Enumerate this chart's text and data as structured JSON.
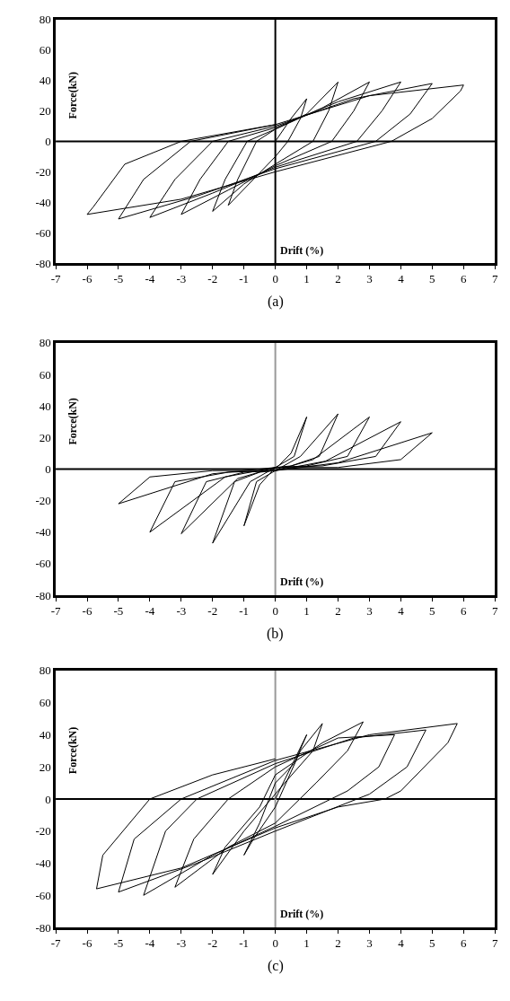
{
  "chart_data": [
    {
      "type": "line",
      "xlabel": "Drift (%)",
      "ylabel": "Force(kN)",
      "annotations": [
        "(a)"
      ],
      "color": "#000000",
      "marker": "none",
      "line_style": "solid",
      "grid": false,
      "x": [
        0,
        0.5,
        1,
        0.8,
        0.4,
        0,
        -0.7,
        -1.5,
        -1.2,
        -0.6,
        0,
        1,
        2,
        1.7,
        1.2,
        0,
        -1,
        -2,
        -1.6,
        -0.9,
        0,
        1.5,
        3,
        2.5,
        1.8,
        0,
        -1.5,
        -3,
        -2.4,
        -1.5,
        0,
        2,
        4,
        3.4,
        2.6,
        0,
        -2,
        -4,
        -3.2,
        -2,
        0,
        2.5,
        5,
        4.3,
        3.2,
        0,
        -2.5,
        -5,
        -4.2,
        -2.7,
        0,
        3,
        6,
        5.9,
        5,
        3.7,
        0,
        -3,
        -6,
        -5.8,
        -4.8,
        -3,
        0
      ],
      "values": [
        0,
        15,
        28,
        15,
        0,
        -10,
        -25,
        -42,
        -25,
        0,
        8,
        18,
        39,
        20,
        0,
        -15,
        -28,
        -46,
        -25,
        0,
        8,
        22,
        39,
        20,
        0,
        -16,
        -32,
        -48,
        -25,
        0,
        9,
        26,
        39,
        20,
        0,
        -17,
        -34,
        -50,
        -25,
        0,
        10,
        28,
        38,
        18,
        0,
        -18,
        -36,
        -51,
        -25,
        0,
        11,
        30,
        37,
        33,
        15,
        0,
        -20,
        -38,
        -48,
        -43,
        -15,
        0,
        11
      ],
      "xlim": [
        -7,
        7
      ],
      "xticks": [
        -7,
        -6,
        -5,
        -4,
        -3,
        -2,
        -1,
        0,
        1,
        2,
        3,
        4,
        5,
        6,
        7
      ],
      "ylim": [
        -80,
        80
      ],
      "yticks": [
        -80,
        -60,
        -40,
        -20,
        0,
        20,
        40,
        60,
        80
      ],
      "ref_lines": [
        {
          "axis": "y",
          "value": 0,
          "color": "#000000"
        },
        {
          "axis": "x",
          "value": 0,
          "color": "#000000"
        }
      ]
    },
    {
      "type": "line",
      "xlabel": "Drift (%)",
      "ylabel": "Force(kN)",
      "annotations": [
        "(b)"
      ],
      "color": "#000000",
      "marker": "none",
      "line_style": "solid",
      "grid": false,
      "x": [
        0,
        0.5,
        1,
        0.6,
        0,
        -0.5,
        -1,
        -0.6,
        0,
        0.8,
        2,
        1.4,
        0.5,
        0,
        -0.8,
        -2,
        -1.3,
        -0.5,
        0,
        1.2,
        3,
        2.3,
        1,
        0,
        -1.2,
        -3,
        -2.2,
        -1,
        0,
        1.6,
        4,
        3.2,
        1.5,
        0,
        -1.6,
        -4,
        -3.2,
        -1.5,
        0,
        2,
        5,
        4,
        2,
        0,
        -2,
        -5,
        -4,
        -2,
        0
      ],
      "values": [
        0,
        10,
        33,
        8,
        1,
        -10,
        -36,
        -8,
        -1,
        8,
        35,
        8,
        2,
        1,
        -8,
        -47,
        -8,
        -2,
        -1,
        6,
        33,
        8,
        2,
        1,
        -6,
        -41,
        -8,
        -2,
        -1,
        5,
        30,
        8,
        2,
        1,
        -5,
        -40,
        -8,
        -2,
        -1,
        4,
        23,
        6,
        1,
        1,
        -3,
        -22,
        -5,
        -1,
        -1
      ],
      "xlim": [
        -7,
        7
      ],
      "xticks": [
        -7,
        -6,
        -5,
        -4,
        -3,
        -2,
        -1,
        0,
        1,
        2,
        3,
        4,
        5,
        6,
        7
      ],
      "ylim": [
        -80,
        80
      ],
      "yticks": [
        -80,
        -60,
        -40,
        -20,
        0,
        20,
        40,
        60,
        80
      ],
      "ref_lines": [
        {
          "axis": "y",
          "value": 0,
          "color": "#000000"
        },
        {
          "axis": "x",
          "value": 0,
          "color": "#999999"
        }
      ]
    },
    {
      "type": "line",
      "xlabel": "Drift (%)",
      "ylabel": "Force(kN)",
      "annotations": [
        "(c)"
      ],
      "color": "#000000",
      "marker": "none",
      "line_style": "solid",
      "grid": false,
      "x": [
        0,
        0.5,
        1,
        0.6,
        0,
        -0.5,
        -1,
        -0.7,
        0,
        0.8,
        1.5,
        1.2,
        0.3,
        -1,
        -2,
        -1.6,
        -0.5,
        0,
        1.5,
        2.8,
        2.3,
        1.3,
        0,
        -1.5,
        -3.2,
        -2.6,
        -1.5,
        0,
        2,
        3.8,
        3.3,
        2.3,
        0,
        -2,
        -4.2,
        -3.5,
        -2.5,
        0,
        2.5,
        4.8,
        4.2,
        3,
        0,
        -2.5,
        -5,
        -4.5,
        -3,
        0,
        3,
        5.8,
        5.5,
        4,
        3.5,
        2,
        0,
        -3,
        -5.7,
        -5.5,
        -4,
        -2,
        0
      ],
      "values": [
        0,
        20,
        40,
        22,
        10,
        -15,
        -35,
        -25,
        -5,
        30,
        47,
        30,
        10,
        -20,
        -47,
        -30,
        -5,
        15,
        35,
        48,
        30,
        10,
        -15,
        -30,
        -55,
        -25,
        0,
        20,
        38,
        40,
        20,
        5,
        -17,
        -35,
        -60,
        -20,
        0,
        22,
        38,
        43,
        20,
        3,
        -20,
        -40,
        -58,
        -25,
        0,
        24,
        40,
        47,
        35,
        5,
        0,
        -5,
        -18,
        -43,
        -56,
        -35,
        0,
        15,
        25
      ],
      "xlim": [
        -7,
        7
      ],
      "xticks": [
        -7,
        -6,
        -5,
        -4,
        -3,
        -2,
        -1,
        0,
        1,
        2,
        3,
        4,
        5,
        6,
        7
      ],
      "ylim": [
        -80,
        80
      ],
      "yticks": [
        -80,
        -60,
        -40,
        -20,
        0,
        20,
        40,
        60,
        80
      ],
      "ref_lines": [
        {
          "axis": "y",
          "value": 0,
          "color": "#000000"
        },
        {
          "axis": "x",
          "value": 0,
          "color": "#999999"
        }
      ]
    }
  ]
}
